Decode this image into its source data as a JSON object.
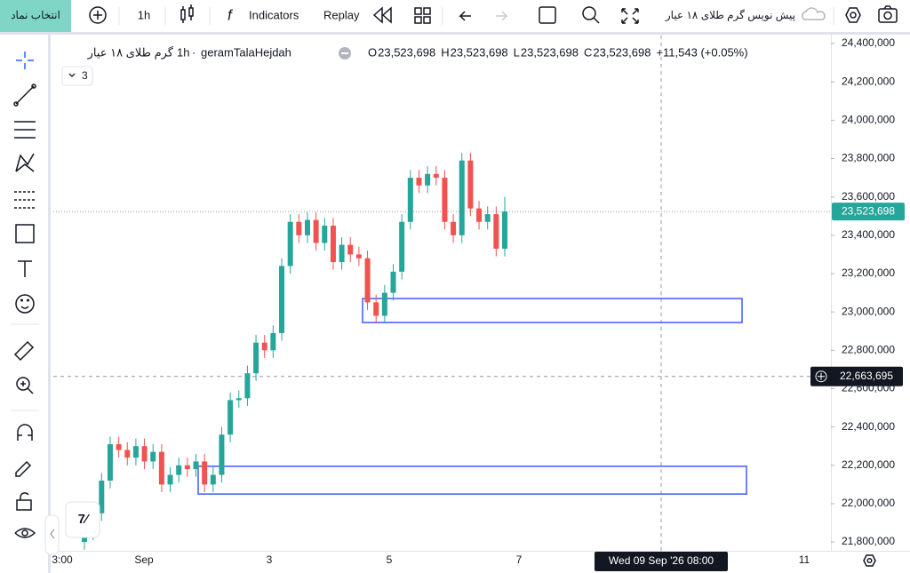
{
  "top_bar": {
    "symbol_button": "انتخاب نماد",
    "interval": "1h",
    "indicators": "Indicators",
    "replay": "Replay",
    "layout_name": "پیش نویس گرم طلای ۱۸ عیار"
  },
  "legend": {
    "symbol": "گرم طلای ۱۸ عیار",
    "interval": "1h",
    "ticker": "geramTalaHejdah",
    "open_label": "O",
    "open": "23,523,698",
    "high_label": "H",
    "high": "23,523,698",
    "low_label": "L",
    "low": "23,523,698",
    "close_label": "C",
    "close": "23,523,698",
    "change": "+11,543 (+0.05%)",
    "indicator_count": "3"
  },
  "chart_data": {
    "type": "candlestick",
    "up_color": "#26a69a",
    "down_color": "#ef5350",
    "candles": {
      "open": [
        21800000,
        21850000,
        21950000,
        22120000,
        22310000,
        22280000,
        22240000,
        22300000,
        22220000,
        22270000,
        22100000,
        22150000,
        22200000,
        22180000,
        22220000,
        22100000,
        22150000,
        22360000,
        22540000,
        22550000,
        22680000,
        22840000,
        22800000,
        22890000,
        23240000,
        23470000,
        23400000,
        23480000,
        23360000,
        23450000,
        23260000,
        23350000,
        23300000,
        23280000,
        23050000,
        22980000,
        23100000,
        23210000,
        23470000,
        23700000,
        23660000,
        23720000,
        23700000,
        23470000,
        23400000,
        23790000,
        23540000,
        23470000,
        23510000,
        23330000
      ],
      "high": [
        21890000,
        21990000,
        22160000,
        22350000,
        22350000,
        22320000,
        22340000,
        22340000,
        22310000,
        22310000,
        22190000,
        22240000,
        22240000,
        22260000,
        22260000,
        22190000,
        22400000,
        22580000,
        22590000,
        22720000,
        22880000,
        22880000,
        22930000,
        23280000,
        23510000,
        23510000,
        23520000,
        23520000,
        23490000,
        23490000,
        23390000,
        23390000,
        23340000,
        23320000,
        23090000,
        23140000,
        23250000,
        23510000,
        23740000,
        23740000,
        23760000,
        23760000,
        23740000,
        23510000,
        23830000,
        23830000,
        23580000,
        23550000,
        23550000,
        23600000
      ],
      "low": [
        21760000,
        21810000,
        21910000,
        22080000,
        22240000,
        22200000,
        22200000,
        22180000,
        22180000,
        22060000,
        22060000,
        22110000,
        22140000,
        22140000,
        22060000,
        22060000,
        22110000,
        22320000,
        22500000,
        22510000,
        22640000,
        22760000,
        22760000,
        22850000,
        23200000,
        23360000,
        23360000,
        23320000,
        23320000,
        23220000,
        23220000,
        23260000,
        23240000,
        23010000,
        22940000,
        22940000,
        23060000,
        23170000,
        23430000,
        23620000,
        23620000,
        23660000,
        23430000,
        23360000,
        23360000,
        23500000,
        23430000,
        23430000,
        23290000,
        23290000
      ],
      "close": [
        21850000,
        21950000,
        22120000,
        22310000,
        22280000,
        22240000,
        22300000,
        22220000,
        22270000,
        22100000,
        22150000,
        22200000,
        22180000,
        22220000,
        22100000,
        22150000,
        22360000,
        22540000,
        22550000,
        22680000,
        22840000,
        22800000,
        22890000,
        23240000,
        23470000,
        23400000,
        23480000,
        23360000,
        23450000,
        23260000,
        23350000,
        23300000,
        23280000,
        23050000,
        22980000,
        23100000,
        23210000,
        23470000,
        23700000,
        23660000,
        23720000,
        23700000,
        23470000,
        23400000,
        23790000,
        23540000,
        23470000,
        23510000,
        23330000,
        23523698
      ]
    },
    "ylim": [
      21754000,
      24442000
    ],
    "yticks": [
      {
        "value": 21800000,
        "label": "21,800,000"
      },
      {
        "value": 22000000,
        "label": "22,000,000"
      },
      {
        "value": 22200000,
        "label": "22,200,000"
      },
      {
        "value": 22400000,
        "label": "22,400,000"
      },
      {
        "value": 22600000,
        "label": "22,600,000"
      },
      {
        "value": 22800000,
        "label": "22,800,000"
      },
      {
        "value": 23000000,
        "label": "23,000,000"
      },
      {
        "value": 23200000,
        "label": "23,200,000"
      },
      {
        "value": 23400000,
        "label": "23,400,000"
      },
      {
        "value": 23600000,
        "label": "23,600,000"
      },
      {
        "value": 23800000,
        "label": "23,800,000"
      },
      {
        "value": 24000000,
        "label": "24,000,000"
      },
      {
        "value": 24200000,
        "label": "24,200,000"
      },
      {
        "value": 24400000,
        "label": "24,400,000"
      }
    ],
    "x_labels": [
      "3:00",
      "Sep",
      "3",
      "5",
      "7",
      "11"
    ],
    "last_price": {
      "value": 23523698,
      "label": "23,523,698"
    },
    "crosshair_price": {
      "value": 22663695,
      "label": "22,663,695"
    },
    "crosshair_time": "Wed 09 Sep '26 08:00",
    "zone_color": "#3d5afe",
    "zones": [
      {
        "top": 23070000,
        "bottom": 22945000
      },
      {
        "top": 22195000,
        "bottom": 22050000
      }
    ]
  }
}
